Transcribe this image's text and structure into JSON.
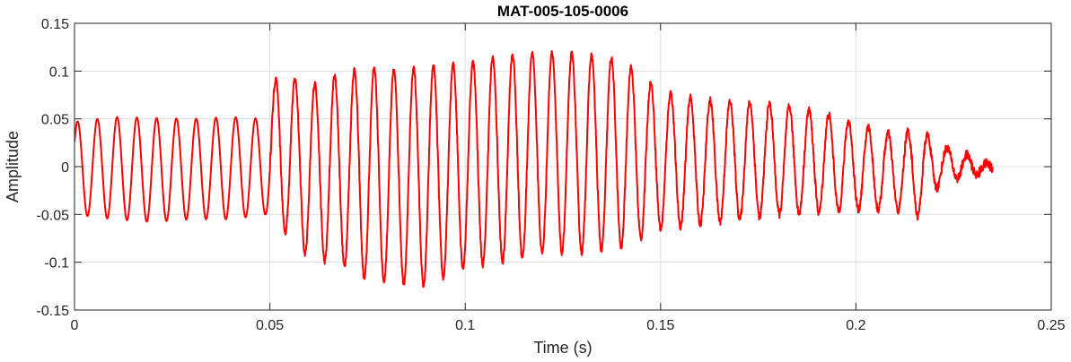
{
  "chart_data": {
    "type": "line",
    "title": "MAT-005-105-0006",
    "xlabel": "Time (s)",
    "ylabel": "Amplitude",
    "xlim": [
      0,
      0.25
    ],
    "ylim": [
      -0.15,
      0.15
    ],
    "xticks": [
      0,
      0.05,
      0.1,
      0.15,
      0.2,
      0.25
    ],
    "xtick_labels": [
      "0",
      "0.05",
      "0.1",
      "0.15",
      "0.2",
      "0.25"
    ],
    "yticks": [
      -0.15,
      -0.1,
      -0.05,
      0,
      0.05,
      0.1,
      0.15
    ],
    "ytick_labels": [
      "-0.15",
      "-0.1",
      "-0.05",
      "0",
      "0.05",
      "0.1",
      "0.15"
    ],
    "grid": true,
    "series": [
      {
        "color": "#ff0000",
        "cycle_period": 0.00506,
        "envelope": [
          {
            "t": 0.0,
            "max": 0.047,
            "min": -0.05
          },
          {
            "t": 0.01,
            "max": 0.052,
            "min": -0.055
          },
          {
            "t": 0.02,
            "max": 0.051,
            "min": -0.058
          },
          {
            "t": 0.03,
            "max": 0.05,
            "min": -0.055
          },
          {
            "t": 0.04,
            "max": 0.052,
            "min": -0.055
          },
          {
            "t": 0.049,
            "max": 0.05,
            "min": -0.05
          },
          {
            "t": 0.052,
            "max": 0.1,
            "min": -0.06
          },
          {
            "t": 0.06,
            "max": 0.085,
            "min": -0.095
          },
          {
            "t": 0.07,
            "max": 0.1,
            "min": -0.105
          },
          {
            "t": 0.075,
            "max": 0.105,
            "min": -0.12
          },
          {
            "t": 0.08,
            "max": 0.1,
            "min": -0.12
          },
          {
            "t": 0.09,
            "max": 0.105,
            "min": -0.125
          },
          {
            "t": 0.1,
            "max": 0.108,
            "min": -0.105
          },
          {
            "t": 0.11,
            "max": 0.117,
            "min": -0.1
          },
          {
            "t": 0.12,
            "max": 0.12,
            "min": -0.09
          },
          {
            "t": 0.13,
            "max": 0.118,
            "min": -0.09
          },
          {
            "t": 0.14,
            "max": 0.112,
            "min": -0.085
          },
          {
            "t": 0.15,
            "max": 0.08,
            "min": -0.065
          },
          {
            "t": 0.16,
            "max": 0.07,
            "min": -0.06
          },
          {
            "t": 0.17,
            "max": 0.068,
            "min": -0.055
          },
          {
            "t": 0.18,
            "max": 0.065,
            "min": -0.05
          },
          {
            "t": 0.19,
            "max": 0.058,
            "min": -0.048
          },
          {
            "t": 0.2,
            "max": 0.045,
            "min": -0.045
          },
          {
            "t": 0.21,
            "max": 0.033,
            "min": -0.045
          },
          {
            "t": 0.216,
            "max": 0.04,
            "min": -0.052
          },
          {
            "t": 0.222,
            "max": 0.022,
            "min": -0.015
          },
          {
            "t": 0.23,
            "max": 0.01,
            "min": -0.01
          },
          {
            "t": 0.235,
            "max": 0.0,
            "min": -0.003
          }
        ]
      }
    ]
  }
}
